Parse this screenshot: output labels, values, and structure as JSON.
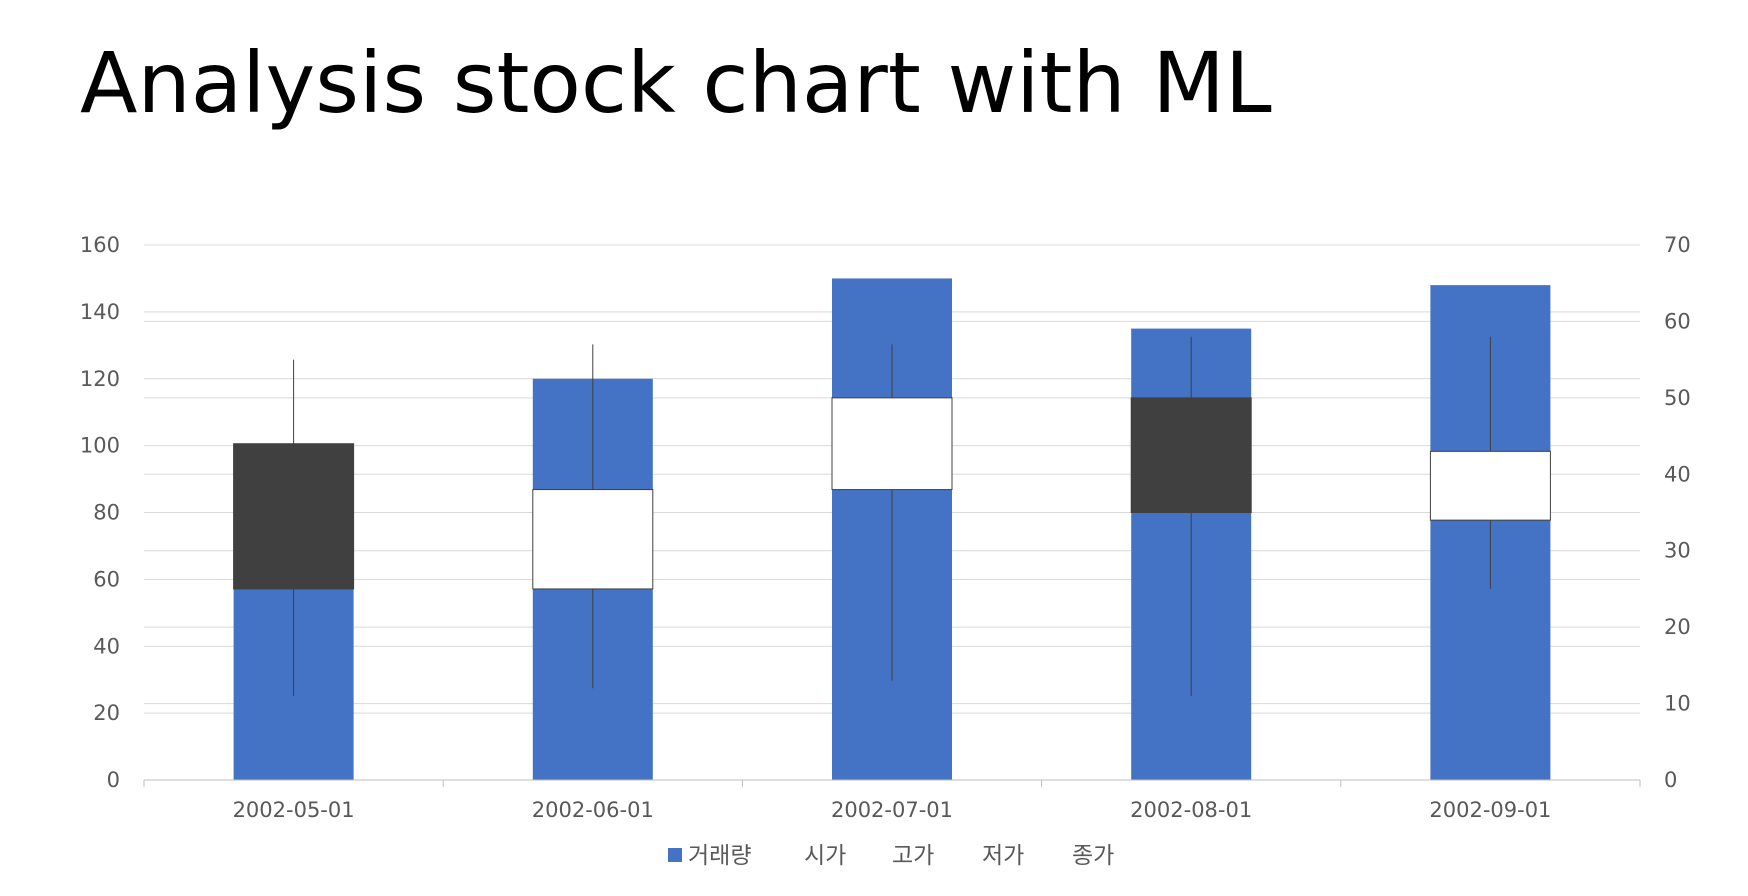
{
  "slide": {
    "title": "Analysis stock chart with ML"
  },
  "chart_data": {
    "type": "candlestick+bar",
    "categories": [
      "2002-05-01",
      "2002-06-01",
      "2002-07-01",
      "2002-08-01",
      "2002-09-01"
    ],
    "volume": {
      "name": "거래량",
      "values": [
        100,
        120,
        150,
        135,
        148
      ],
      "color": "#4472C4"
    },
    "ohlc": {
      "open": [
        44,
        25,
        38,
        50,
        34
      ],
      "high": [
        55,
        57,
        57,
        58,
        58
      ],
      "low": [
        11,
        12,
        13,
        11,
        25
      ],
      "close": [
        25,
        38,
        50,
        35,
        43
      ]
    },
    "up_color": "#FFFFFF",
    "down_color": "#404040",
    "grid_color": "#D9D9D9",
    "y_left": {
      "min": 0,
      "max": 160,
      "ticks": [
        0,
        20,
        40,
        60,
        80,
        100,
        120,
        140,
        160
      ]
    },
    "y_right": {
      "min": 0,
      "max": 70,
      "ticks": [
        0,
        10,
        20,
        30,
        40,
        50,
        60,
        70
      ]
    },
    "grid": true,
    "legend": {
      "position": "bottom",
      "items": [
        "거래량",
        "시가",
        "고가",
        "저가",
        "종가"
      ]
    }
  }
}
